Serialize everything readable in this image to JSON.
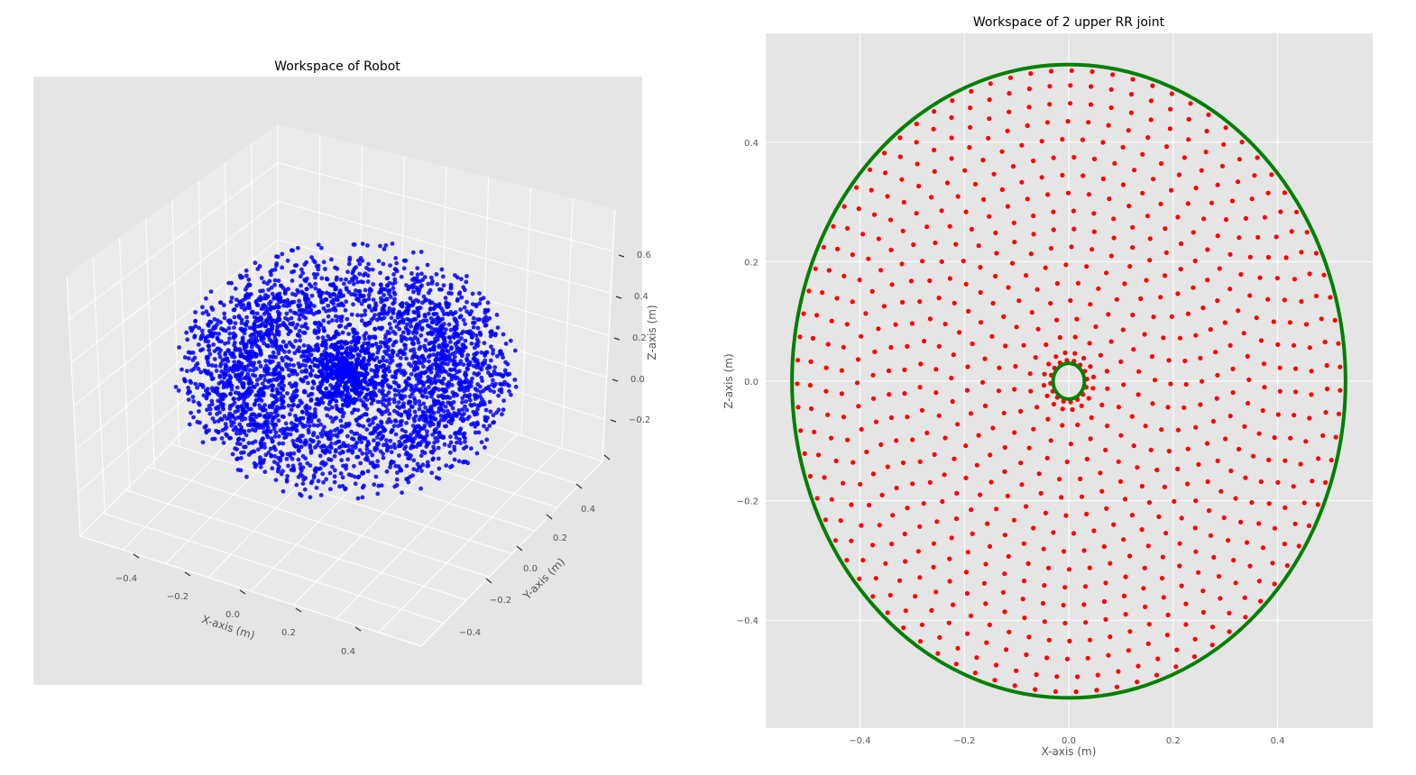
{
  "chart_data": [
    {
      "type": "scatter",
      "title": "Workspace of Robot",
      "xlabel": "X-axis (m)",
      "ylabel": "Y-axis (m)",
      "zlabel": "Z-axis (m)",
      "projection": "3d",
      "xlim": [
        -0.53,
        0.53
      ],
      "ylim": [
        -0.53,
        0.53
      ],
      "zlim": [
        -0.4,
        0.7
      ],
      "x_ticks": [
        "−0.4",
        "−0.2",
        "0.0",
        "0.2",
        "0.4"
      ],
      "y_ticks": [
        "−0.4",
        "−0.2",
        "0.0",
        "0.2",
        "0.4"
      ],
      "z_ticks": [
        "−0.2",
        "0.0",
        "0.2",
        "0.4",
        "0.6"
      ],
      "grid": true,
      "series": [
        {
          "marker_color": "#0000ff",
          "shape": "sphere",
          "radius": 0.53,
          "center": [
            0,
            0,
            0.14
          ]
        }
      ]
    },
    {
      "type": "scatter",
      "title": "Workspace of 2 upper RR joint",
      "xlabel": "X-axis (m)",
      "ylabel": "Z-axis (m)",
      "xlim": [
        -0.58,
        0.58
      ],
      "ylim": [
        -0.58,
        0.58
      ],
      "x_ticks": [
        "−0.4",
        "−0.2",
        "0.0",
        "0.2",
        "0.4"
      ],
      "x_tick_values": [
        -0.4,
        -0.2,
        0.0,
        0.2,
        0.4
      ],
      "y_ticks": [
        "0.4",
        "0.2",
        "0.0",
        "−0.2",
        "−0.4"
      ],
      "y_tick_values": [
        0.4,
        0.2,
        0.0,
        -0.2,
        -0.4
      ],
      "grid": true,
      "series": [
        {
          "marker_color": "#ff0000",
          "shape": "concentric rings of points",
          "ring_radii": [
            0.035,
            0.048,
            0.075,
            0.105,
            0.135,
            0.165,
            0.195,
            0.225,
            0.255,
            0.285,
            0.315,
            0.345,
            0.375,
            0.405,
            0.435,
            0.465,
            0.495,
            0.52
          ]
        },
        {
          "line_color": "#008000",
          "shape": "circle",
          "radius": 0.53
        },
        {
          "line_color": "#008000",
          "shape": "circle",
          "radius": 0.03
        }
      ]
    }
  ]
}
